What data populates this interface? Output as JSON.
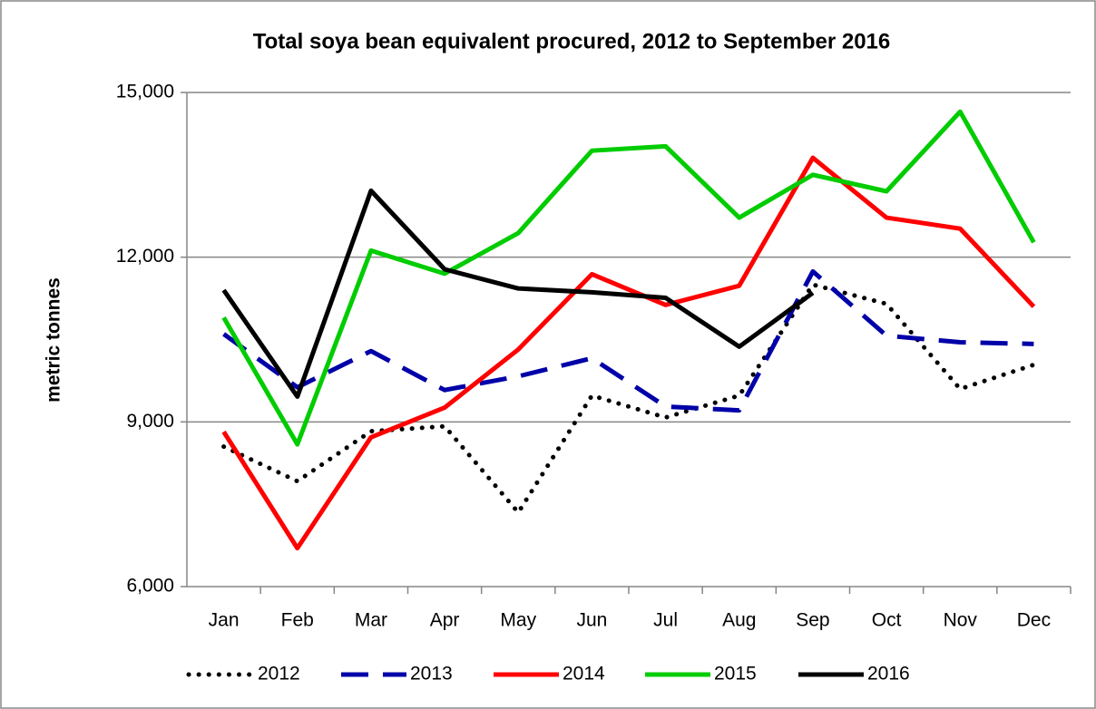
{
  "chart_data": {
    "type": "line",
    "title": "Total soya bean equivalent procured, 2012 to September 2016",
    "y_label": "metric tonnes",
    "categories": [
      "Jan",
      "Feb",
      "Mar",
      "Apr",
      "May",
      "Jun",
      "Jul",
      "Aug",
      "Sep",
      "Oct",
      "Nov",
      "Dec"
    ],
    "ylim": [
      6000,
      15000
    ],
    "yticks": [
      {
        "value": 6000,
        "label": "6,000"
      },
      {
        "value": 9000,
        "label": "9,000"
      },
      {
        "value": 12000,
        "label": "12,000"
      },
      {
        "value": 15000,
        "label": "15,000"
      }
    ],
    "grid": true,
    "legend": "bottom",
    "series": [
      {
        "name": "2012",
        "color": "#000000",
        "style": "dotted",
        "values": [
          8550,
          7920,
          8830,
          8920,
          7350,
          9480,
          9080,
          9480,
          11500,
          11150,
          9600,
          10040
        ]
      },
      {
        "name": "2013",
        "color": "#0000a8",
        "style": "dashed",
        "values": [
          10600,
          9630,
          10290,
          9580,
          9830,
          10160,
          9280,
          9210,
          11740,
          10570,
          10450,
          10420
        ]
      },
      {
        "name": "2014",
        "color": "#ff0000",
        "style": "solid",
        "values": [
          8820,
          6700,
          8720,
          9260,
          10320,
          11690,
          11130,
          11480,
          13810,
          12720,
          12520,
          11100
        ]
      },
      {
        "name": "2015",
        "color": "#00cc00",
        "style": "solid",
        "values": [
          10900,
          8590,
          12120,
          11700,
          12440,
          13940,
          14020,
          12720,
          13500,
          13200,
          14650,
          12270
        ]
      },
      {
        "name": "2016",
        "color": "#000000",
        "style": "solid",
        "values": [
          11400,
          9460,
          13210,
          11780,
          11430,
          11360,
          11260,
          10370,
          11350,
          null,
          null,
          null
        ]
      }
    ]
  }
}
